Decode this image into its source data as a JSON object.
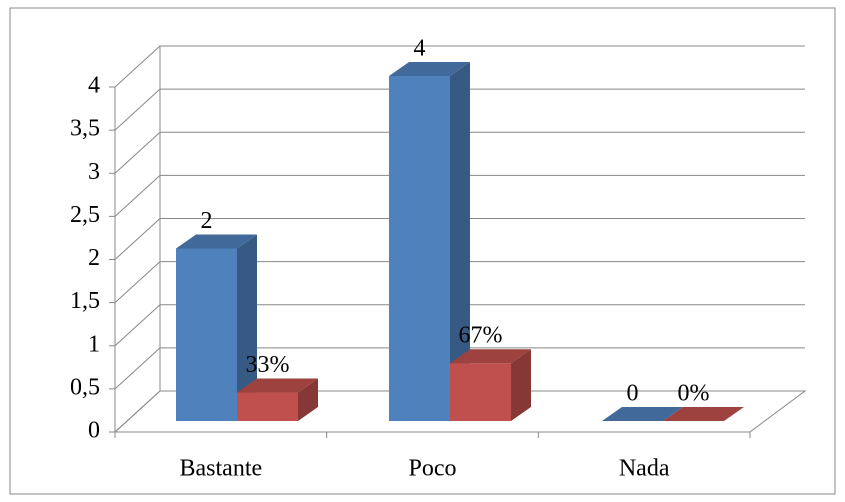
{
  "chart_data": {
    "type": "bar3d",
    "categories": [
      "Bastante",
      "Poco",
      "Nada"
    ],
    "series": [
      {
        "color": "#4f81bd",
        "values": [
          2,
          4,
          0
        ]
      },
      {
        "color": "#c0504d",
        "values": [
          0.33,
          0.67,
          0
        ],
        "value_labels": [
          "33%",
          "67%",
          "0%"
        ]
      }
    ],
    "ylim": [
      0,
      4
    ],
    "yticks": [
      0,
      {
        "value": 0.5,
        "label": "0,5"
      },
      1,
      {
        "value": 1.5,
        "label": "1,5"
      },
      2,
      {
        "value": 2.5,
        "label": "2,5"
      },
      3,
      {
        "value": 3.5,
        "label": "3,5"
      },
      4
    ],
    "grid": true
  }
}
